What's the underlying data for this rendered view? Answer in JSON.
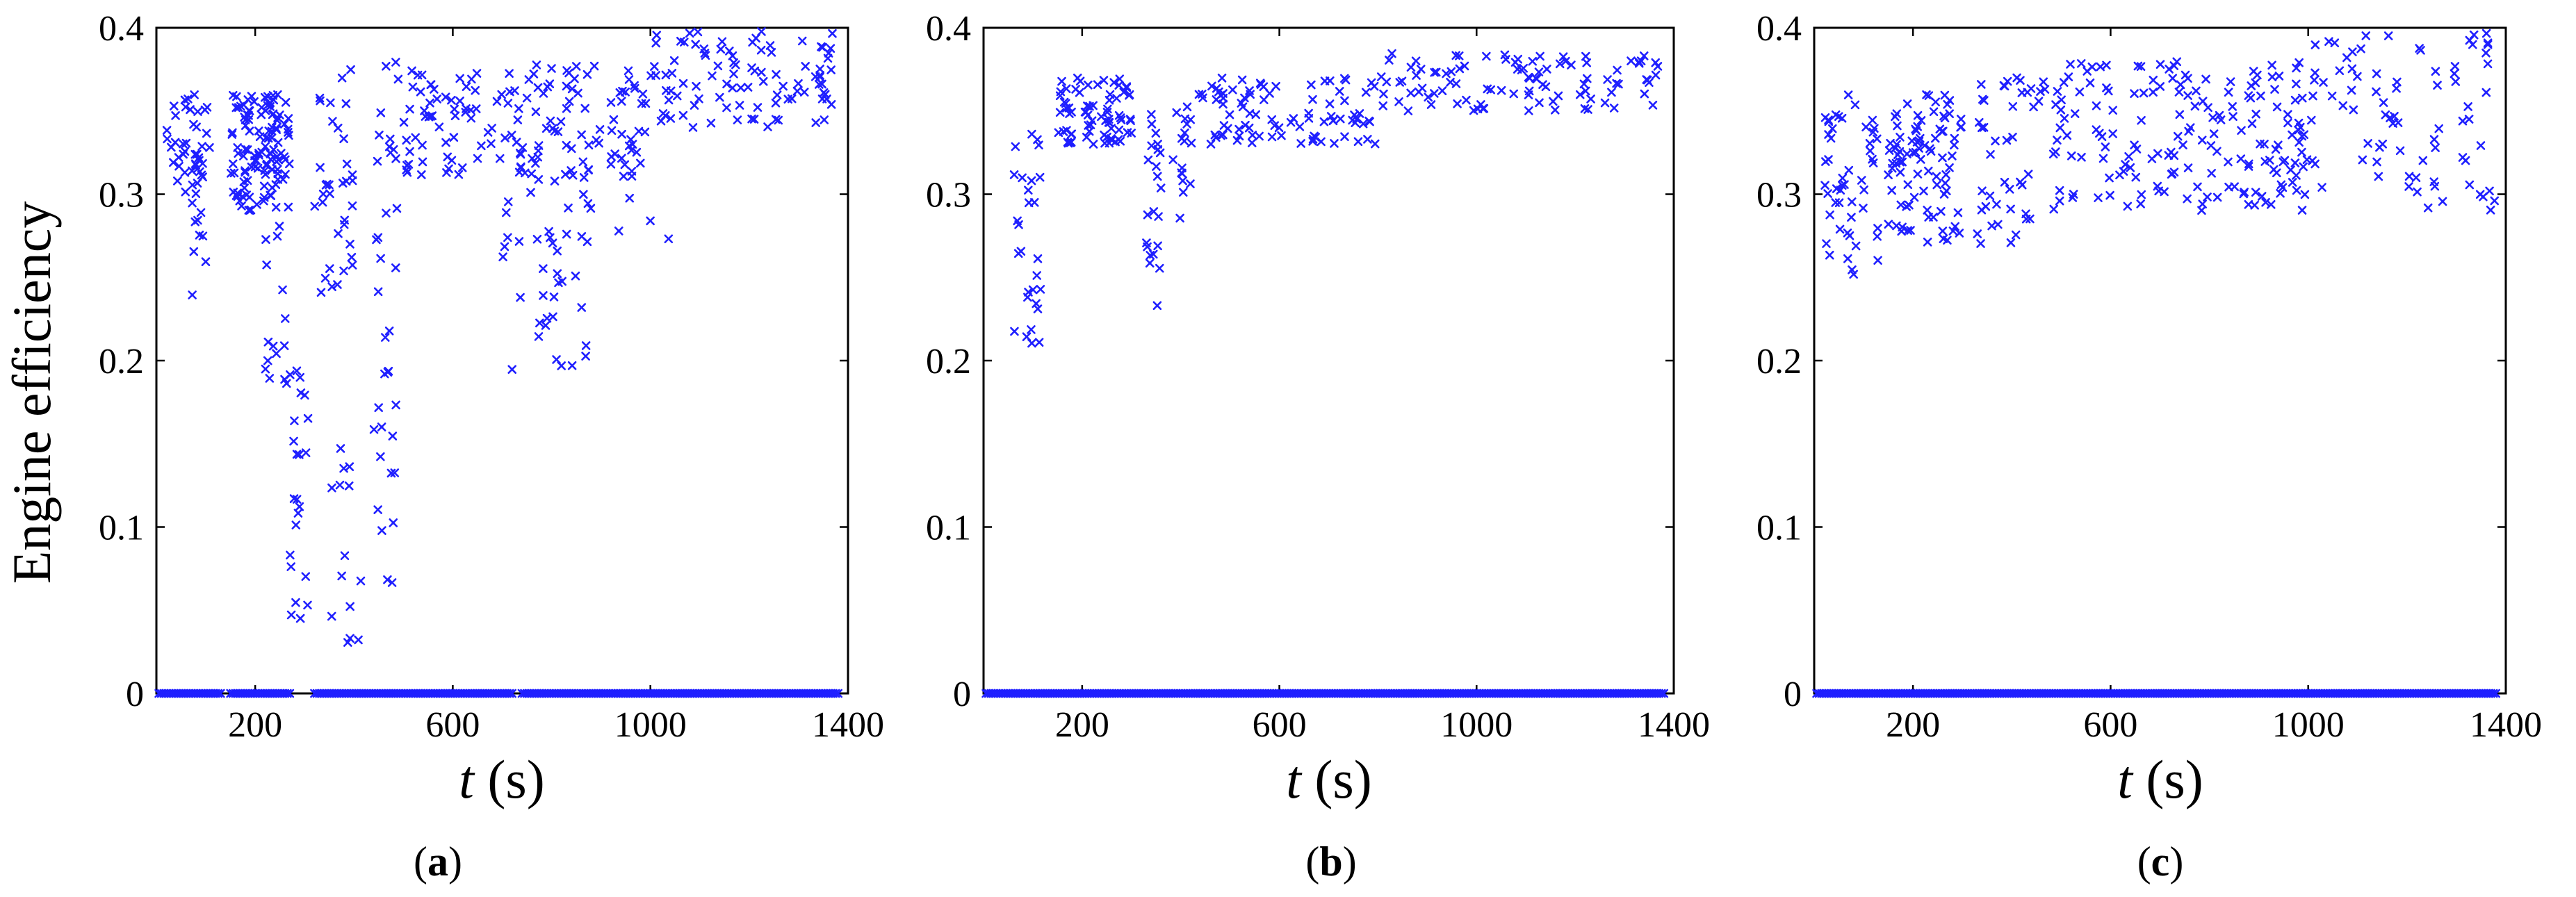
{
  "ylabel": "Engine efficiency",
  "xlabel_var": "t",
  "xlabel_unit": "(s)",
  "marker_color": "#1f1fff",
  "panels": [
    {
      "open": "(",
      "letter": "a",
      "close": ")"
    },
    {
      "open": "(",
      "letter": "b",
      "close": ")"
    },
    {
      "open": "(",
      "letter": "c",
      "close": ")"
    }
  ],
  "chart_data": [
    {
      "type": "scatter",
      "marker": "x",
      "xlim": [
        0,
        1400
      ],
      "ylim": [
        0,
        0.4
      ],
      "xticks": [
        200,
        600,
        1000,
        1400
      ],
      "yticks": [
        0,
        0.1,
        0.2,
        0.3,
        0.4
      ],
      "xticklabels": [
        "200",
        "600",
        "1000",
        "1400"
      ],
      "yticklabels": [
        "0",
        "0.1",
        "0.2",
        "0.3",
        "0.4"
      ],
      "clusters": [
        {
          "x": [
            20,
            110
          ],
          "y": [
            0.3,
            0.36
          ],
          "n": 45
        },
        {
          "x": [
            70,
            100
          ],
          "y": [
            0.22,
            0.3
          ],
          "n": 9
        },
        {
          "x": [
            150,
            270
          ],
          "y": [
            0.29,
            0.36
          ],
          "n": 120
        },
        {
          "x": [
            220,
            280
          ],
          "y": [
            0.18,
            0.29
          ],
          "n": 16
        },
        {
          "x": [
            270,
            310
          ],
          "y": [
            0.04,
            0.2
          ],
          "n": 22
        },
        {
          "x": [
            320,
            400
          ],
          "y": [
            0.24,
            0.38
          ],
          "n": 35
        },
        {
          "x": [
            350,
            420
          ],
          "y": [
            0.03,
            0.15
          ],
          "n": 14
        },
        {
          "x": [
            440,
            490
          ],
          "y": [
            0.06,
            0.38
          ],
          "n": 36
        },
        {
          "x": [
            500,
            1000
          ],
          "y": [
            0.31,
            0.38
          ],
          "n": 150
        },
        {
          "x": [
            700,
            880
          ],
          "y": [
            0.19,
            0.32
          ],
          "n": 45
        },
        {
          "x": [
            1000,
            1380
          ],
          "y": [
            0.34,
            0.4
          ],
          "n": 95
        },
        {
          "x": [
            900,
            1100
          ],
          "y": [
            0.27,
            0.3
          ],
          "n": 4
        }
      ],
      "baseline_segments": [
        [
          5,
          130
        ],
        [
          150,
          270
        ],
        [
          320,
          720
        ],
        [
          740,
          1380
        ]
      ]
    },
    {
      "type": "scatter",
      "marker": "x",
      "xlim": [
        0,
        1400
      ],
      "ylim": [
        0,
        0.4
      ],
      "xticks": [
        200,
        600,
        1000,
        1400
      ],
      "yticks": [
        0,
        0.1,
        0.2,
        0.3,
        0.4
      ],
      "xticklabels": [
        "200",
        "600",
        "1000",
        "1400"
      ],
      "yticklabels": [
        "0",
        "0.1",
        "0.2",
        "0.3",
        "0.4"
      ],
      "clusters": [
        {
          "x": [
            60,
            120
          ],
          "y": [
            0.21,
            0.34
          ],
          "n": 28
        },
        {
          "x": [
            150,
            300
          ],
          "y": [
            0.33,
            0.37
          ],
          "n": 75
        },
        {
          "x": [
            330,
            360
          ],
          "y": [
            0.23,
            0.36
          ],
          "n": 22
        },
        {
          "x": [
            380,
            420
          ],
          "y": [
            0.28,
            0.36
          ],
          "n": 16
        },
        {
          "x": [
            420,
            800
          ],
          "y": [
            0.33,
            0.37
          ],
          "n": 90
        },
        {
          "x": [
            800,
            1380
          ],
          "y": [
            0.35,
            0.385
          ],
          "n": 100
        }
      ],
      "baseline_segments": [
        [
          5,
          1380
        ]
      ]
    },
    {
      "type": "scatter",
      "marker": "x",
      "xlim": [
        0,
        1400
      ],
      "ylim": [
        0,
        0.4
      ],
      "xticks": [
        200,
        600,
        1000,
        1400
      ],
      "yticks": [
        0,
        0.1,
        0.2,
        0.3,
        0.4
      ],
      "xticklabels": [
        "200",
        "600",
        "1000",
        "1400"
      ],
      "yticklabels": [
        "0",
        "0.1",
        "0.2",
        "0.3",
        "0.4"
      ],
      "clusters": [
        {
          "x": [
            20,
            130
          ],
          "y": [
            0.25,
            0.36
          ],
          "n": 50
        },
        {
          "x": [
            150,
            300
          ],
          "y": [
            0.27,
            0.36
          ],
          "n": 90
        },
        {
          "x": [
            330,
            450
          ],
          "y": [
            0.27,
            0.37
          ],
          "n": 40
        },
        {
          "x": [
            450,
            1000
          ],
          "y": [
            0.29,
            0.38
          ],
          "n": 180
        },
        {
          "x": [
            1000,
            1380
          ],
          "y": [
            0.29,
            0.4
          ],
          "n": 80
        }
      ],
      "baseline_segments": [
        [
          5,
          1380
        ]
      ]
    }
  ]
}
